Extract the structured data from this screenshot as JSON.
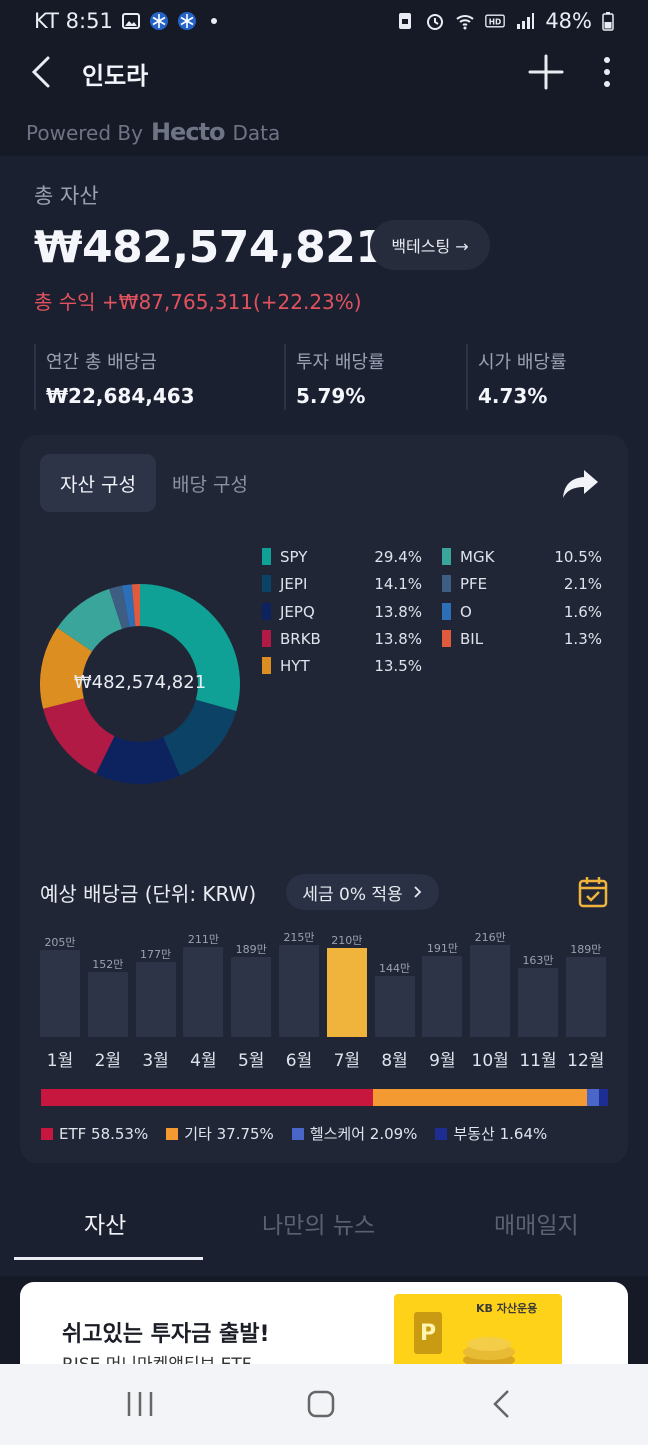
{
  "status_bar": {
    "carrier_time": "KT 8:51",
    "battery": "48%",
    "icons": [
      "image-icon",
      "snowflake-icon",
      "snowflake-icon",
      "lock-icon",
      "alarm-icon",
      "wifi-icon",
      "hd-icon",
      "signal-icon",
      "battery-icon"
    ]
  },
  "header": {
    "title": "인도라"
  },
  "powered": {
    "prefix": "Powered By",
    "brand": "Hecto",
    "suffix": "Data"
  },
  "summary": {
    "total_label": "총 자산",
    "total_value": "₩482,574,821",
    "backtest_label": "백테스팅 →",
    "profit_text": "총 수익 +₩87,765,311(+22.23%)",
    "stats": [
      {
        "label": "연간 총 배당금",
        "value": "₩22,684,463"
      },
      {
        "label": "투자 배당률",
        "value": "5.79%"
      },
      {
        "label": "시가 배당률",
        "value": "4.73%"
      }
    ]
  },
  "composition": {
    "tab_active": "자산 구성",
    "tab_inactive": "배당 구성",
    "center_value": "₩482,574,821",
    "holdings_left": [
      {
        "name": "SPY",
        "pct": "29.4%",
        "value": 29.4,
        "color": "#0fa195"
      },
      {
        "name": "JEPI",
        "pct": "14.1%",
        "value": 14.1,
        "color": "#0b4265"
      },
      {
        "name": "JEPQ",
        "pct": "13.8%",
        "value": 13.8,
        "color": "#0d2360"
      },
      {
        "name": "BRKB",
        "pct": "13.8%",
        "value": 13.8,
        "color": "#b01a44"
      },
      {
        "name": "HYT",
        "pct": "13.5%",
        "value": 13.5,
        "color": "#dc8e20"
      }
    ],
    "holdings_right": [
      {
        "name": "MGK",
        "pct": "10.5%",
        "value": 10.5,
        "color": "#3aa69b"
      },
      {
        "name": "PFE",
        "pct": "2.1%",
        "value": 2.1,
        "color": "#3e5d82"
      },
      {
        "name": "O",
        "pct": "1.6%",
        "value": 1.6,
        "color": "#2d6fb6"
      },
      {
        "name": "BIL",
        "pct": "1.3%",
        "value": 1.3,
        "color": "#e05a3d"
      }
    ]
  },
  "dividends": {
    "title": "예상 배당금 (단위: KRW)",
    "tax_chip": "세금 0% 적용",
    "highlight_color": "#f0b43c",
    "bar_color": "#2d3447"
  },
  "chart_data": {
    "type": "bar",
    "categories": [
      "1월",
      "2월",
      "3월",
      "4월",
      "5월",
      "6월",
      "7월",
      "8월",
      "9월",
      "10월",
      "11월",
      "12월"
    ],
    "values": [
      205,
      152,
      177,
      211,
      189,
      215,
      210,
      144,
      191,
      216,
      163,
      189
    ],
    "labels": [
      "205만",
      "152만",
      "177만",
      "211만",
      "189만",
      "215만",
      "210만",
      "144만",
      "191만",
      "216만",
      "163만",
      "189만"
    ],
    "highlight_index": 6,
    "ylim": [
      0,
      216
    ]
  },
  "sectors": [
    {
      "label": "ETF 58.53%",
      "value": 58.53,
      "color": "#c8173f"
    },
    {
      "label": "기타 37.75%",
      "value": 37.75,
      "color": "#f49a32"
    },
    {
      "label": "헬스케어 2.09%",
      "value": 2.09,
      "color": "#4a66c8"
    },
    {
      "label": "부동산 1.64%",
      "value": 1.64,
      "color": "#1d2d92"
    }
  ],
  "bottom_tabs": [
    {
      "label": "자산",
      "active": true
    },
    {
      "label": "나만의 뉴스",
      "active": false
    },
    {
      "label": "매매일지",
      "active": false
    }
  ],
  "banner": {
    "title": "쉬고있는 투자금 출발!",
    "subtitle": "RISE 머니마켓액티브 ETF",
    "brand": "KB 자산운용"
  }
}
